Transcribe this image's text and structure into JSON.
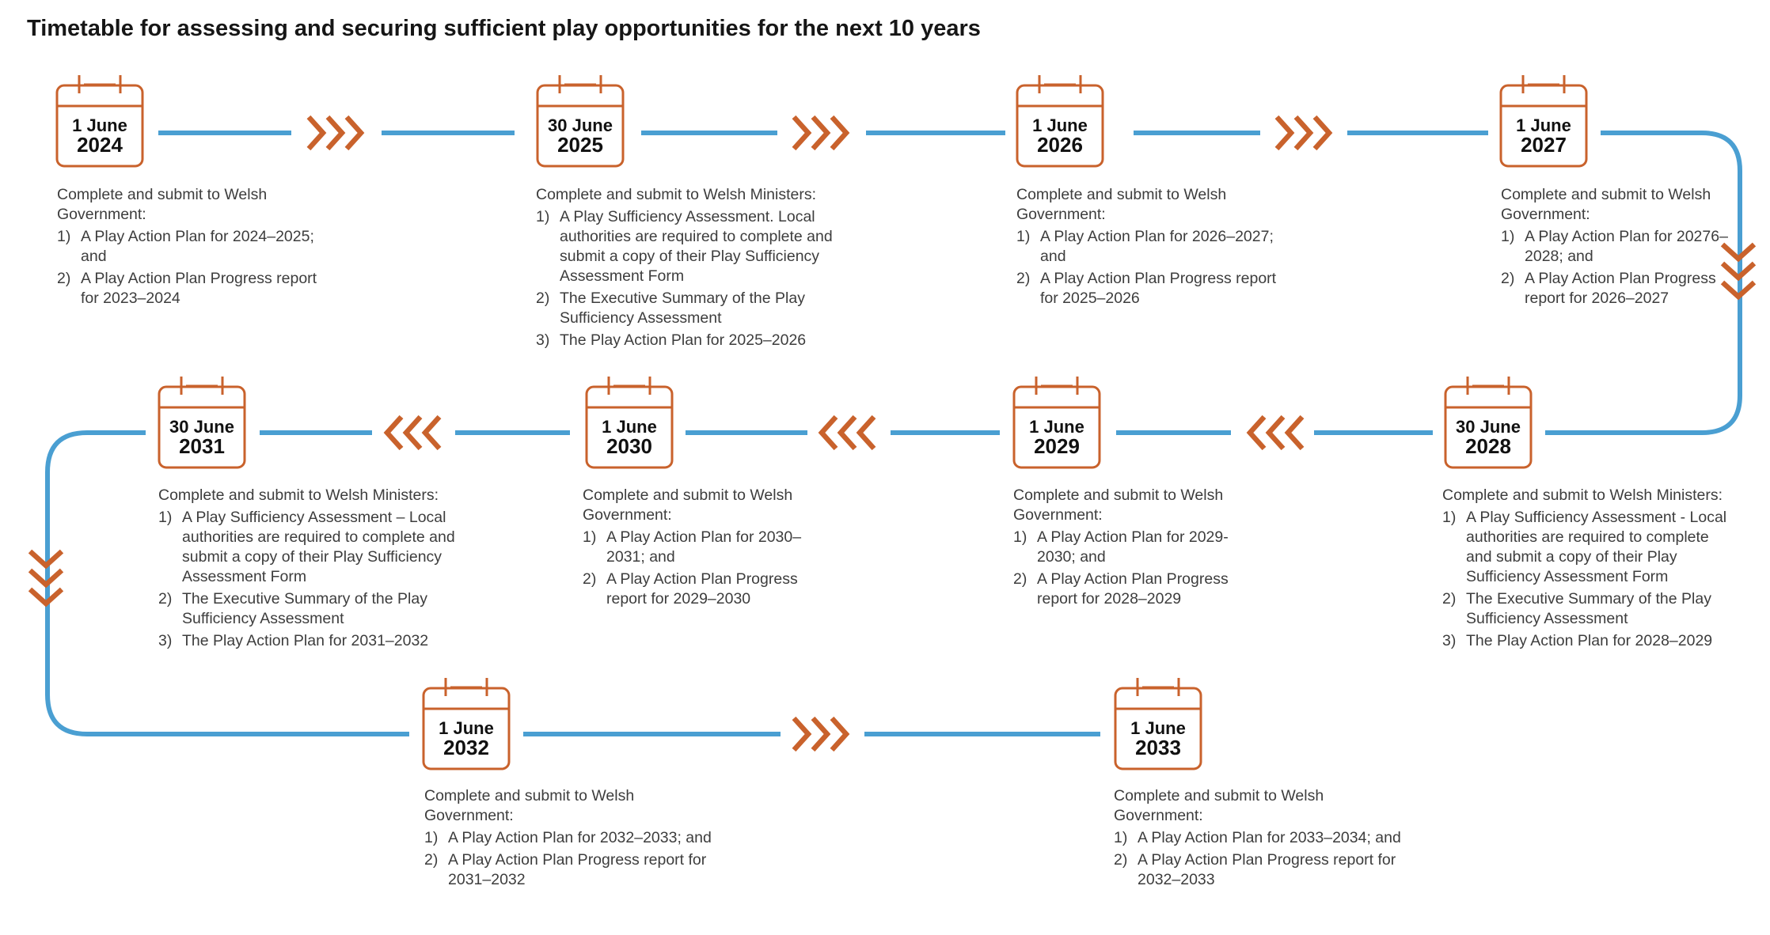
{
  "title": "Timetable for assessing and securing sufficient play opportunities for the next 10 years",
  "colors": {
    "line": "#4a9fd2",
    "accent": "#c9622c",
    "text": "#3d3d3d",
    "heading": "#161616"
  },
  "icons": {
    "calendar": "calendar-icon",
    "arrow": "chevron-triple-icon"
  },
  "steps": [
    {
      "day": "1 June",
      "year": "2024",
      "intro": "Complete and submit to Welsh Government:",
      "items": [
        {
          "n": "1)",
          "text": "A Play Action Plan for 2024–2025; and"
        },
        {
          "n": "2)",
          "text": "A Play Action Plan Progress report for 2023–2024"
        }
      ]
    },
    {
      "day": "30 June",
      "year": "2025",
      "intro": "Complete and submit to Welsh Ministers:",
      "items": [
        {
          "n": "1)",
          "text": "A Play Sufficiency Assessment. Local authorities are required to complete and submit a copy of their Play Sufficiency Assessment Form"
        },
        {
          "n": "2)",
          "text": "The Executive Summary of the Play Sufficiency Assessment"
        },
        {
          "n": "3)",
          "text": "The Play Action Plan for 2025–2026"
        }
      ]
    },
    {
      "day": "1 June",
      "year": "2026",
      "intro": "Complete and submit to Welsh Government:",
      "items": [
        {
          "n": "1)",
          "text": "A Play Action Plan for 2026–2027; and"
        },
        {
          "n": "2)",
          "text": "A Play Action Plan Progress report for 2025–2026"
        }
      ]
    },
    {
      "day": "1 June",
      "year": "2027",
      "intro": "Complete and submit to Welsh Government:",
      "items": [
        {
          "n": "1)",
          "text": "A Play Action Plan for 20276–2028; and"
        },
        {
          "n": "2)",
          "text": "A Play Action Plan Progress report for 2026–2027"
        }
      ]
    },
    {
      "day": "30 June",
      "year": "2028",
      "intro": "Complete and submit to Welsh Ministers:",
      "items": [
        {
          "n": "1)",
          "text": "A Play Sufficiency Assessment - Local authorities are required to complete and submit a copy of their Play Sufficiency Assessment Form"
        },
        {
          "n": "2)",
          "text": "The Executive Summary of the Play Sufficiency Assessment"
        },
        {
          "n": "3)",
          "text": "The Play Action Plan for 2028–2029"
        }
      ]
    },
    {
      "day": "1 June",
      "year": "2029",
      "intro": "Complete and submit to Welsh Government:",
      "items": [
        {
          "n": "1)",
          "text": "A Play Action Plan for 2029-2030; and"
        },
        {
          "n": "2)",
          "text": "A Play Action Plan Progress report for 2028–2029"
        }
      ]
    },
    {
      "day": "1 June",
      "year": "2030",
      "intro": "Complete and submit to Welsh Government:",
      "items": [
        {
          "n": "1)",
          "text": "A Play Action Plan for 2030–2031; and"
        },
        {
          "n": "2)",
          "text": "A Play Action Plan Progress report for 2029–2030"
        }
      ]
    },
    {
      "day": "30 June",
      "year": "2031",
      "intro": "Complete and submit to Welsh Ministers:",
      "items": [
        {
          "n": "1)",
          "text": "A Play Sufficiency Assessment – Local authorities are required to complete and submit a copy of their Play Sufficiency Assessment Form"
        },
        {
          "n": "2)",
          "text": "The Executive Summary of the Play Sufficiency Assessment"
        },
        {
          "n": "3)",
          "text": "The Play Action Plan for 2031–2032"
        }
      ]
    },
    {
      "day": "1 June",
      "year": "2032",
      "intro": "Complete and submit to Welsh Government:",
      "items": [
        {
          "n": "1)",
          "text": "A Play Action Plan for 2032–2033; and"
        },
        {
          "n": "2)",
          "text": "A Play Action Plan Progress report for 2031–2032"
        }
      ]
    },
    {
      "day": "1 June",
      "year": "2033",
      "intro": "Complete and submit to Welsh Government:",
      "items": [
        {
          "n": "1)",
          "text": "A Play Action Plan for 2033–2034; and"
        },
        {
          "n": "2)",
          "text": "A Play Action Plan Progress report for 2032–2033"
        }
      ]
    }
  ]
}
